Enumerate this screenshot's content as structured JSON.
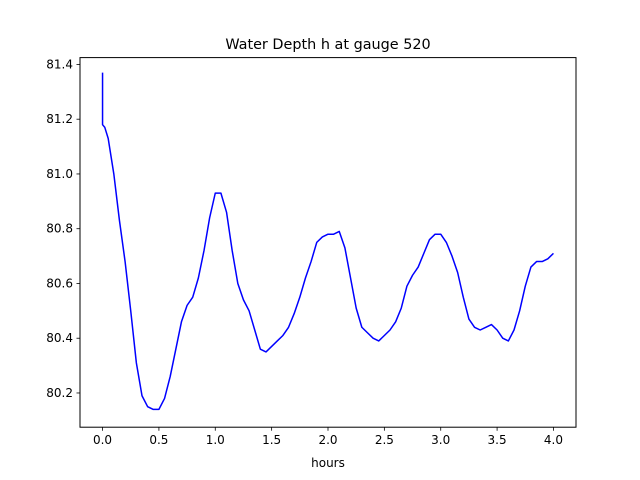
{
  "chart_data": {
    "type": "line",
    "title": "Water Depth h at gauge 520",
    "xlabel": "hours",
    "ylabel": "",
    "xlim": [
      -0.2,
      4.2
    ],
    "ylim": [
      80.075,
      81.425
    ],
    "xticks": [
      0.0,
      0.5,
      1.0,
      1.5,
      2.0,
      2.5,
      3.0,
      3.5,
      4.0
    ],
    "xtick_labels": [
      "0.0",
      "0.5",
      "1.0",
      "1.5",
      "2.0",
      "2.5",
      "3.0",
      "3.5",
      "4.0"
    ],
    "yticks": [
      80.2,
      80.4,
      80.6,
      80.8,
      81.0,
      81.2,
      81.4
    ],
    "ytick_labels": [
      "80.2",
      "80.4",
      "80.6",
      "80.8",
      "81.0",
      "81.2",
      "81.4"
    ],
    "grid": false,
    "series": [
      {
        "color": "#0000ff",
        "x": [
          0.0,
          0.0,
          0.02,
          0.05,
          0.1,
          0.15,
          0.2,
          0.25,
          0.3,
          0.35,
          0.4,
          0.45,
          0.5,
          0.55,
          0.6,
          0.65,
          0.7,
          0.75,
          0.8,
          0.85,
          0.9,
          0.95,
          1.0,
          1.05,
          1.1,
          1.15,
          1.2,
          1.25,
          1.3,
          1.35,
          1.4,
          1.45,
          1.5,
          1.55,
          1.6,
          1.65,
          1.7,
          1.75,
          1.8,
          1.85,
          1.9,
          1.95,
          2.0,
          2.05,
          2.1,
          2.15,
          2.2,
          2.25,
          2.3,
          2.35,
          2.4,
          2.45,
          2.5,
          2.55,
          2.6,
          2.65,
          2.7,
          2.75,
          2.8,
          2.85,
          2.9,
          2.95,
          3.0,
          3.05,
          3.1,
          3.15,
          3.2,
          3.25,
          3.3,
          3.35,
          3.4,
          3.45,
          3.5,
          3.55,
          3.6,
          3.65,
          3.7,
          3.75,
          3.8,
          3.85,
          3.9,
          3.95,
          4.0
        ],
        "y": [
          81.37,
          81.18,
          81.17,
          81.13,
          81.0,
          80.83,
          80.68,
          80.5,
          80.31,
          80.19,
          80.15,
          80.14,
          80.14,
          80.18,
          80.26,
          80.36,
          80.46,
          80.52,
          80.55,
          80.62,
          80.72,
          80.84,
          80.93,
          80.93,
          80.86,
          80.72,
          80.6,
          80.54,
          80.5,
          80.43,
          80.36,
          80.35,
          80.37,
          80.39,
          80.41,
          80.44,
          80.49,
          80.55,
          80.62,
          80.68,
          80.75,
          80.77,
          80.78,
          80.78,
          80.79,
          80.73,
          80.62,
          80.51,
          80.44,
          80.42,
          80.4,
          80.39,
          80.41,
          80.43,
          80.46,
          80.51,
          80.59,
          80.63,
          80.66,
          80.71,
          80.76,
          80.78,
          80.78,
          80.75,
          80.7,
          80.64,
          80.55,
          80.47,
          80.44,
          80.43,
          80.44,
          80.45,
          80.43,
          80.4,
          80.39,
          80.43,
          80.5,
          80.59,
          80.66,
          80.68,
          80.68,
          80.69,
          80.71
        ]
      }
    ]
  }
}
